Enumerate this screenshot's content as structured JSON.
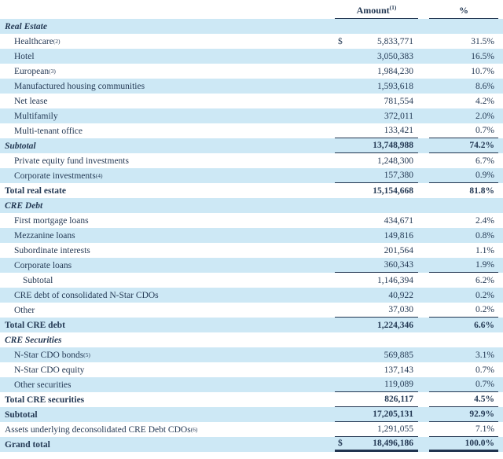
{
  "colors": {
    "row_shade": "#cde8f5",
    "text": "#253a55",
    "rule_line": "#203450"
  },
  "table": {
    "columns": {
      "amount_label": "Amount",
      "amount_sup": "(1)",
      "percent_label": "%"
    },
    "rows": [
      {
        "label": "Real Estate",
        "sup": "",
        "dollar": "",
        "amount": "",
        "pct": "",
        "indent": 0,
        "bold": true,
        "italic": true,
        "shade": true,
        "rule": "none"
      },
      {
        "label": "Healthcare",
        "sup": "(2)",
        "dollar": "$",
        "amount": "5,833,771",
        "pct": "31.5%",
        "indent": 1,
        "bold": false,
        "italic": false,
        "shade": false,
        "rule": "none"
      },
      {
        "label": "Hotel",
        "sup": "",
        "dollar": "",
        "amount": "3,050,383",
        "pct": "16.5%",
        "indent": 1,
        "bold": false,
        "italic": false,
        "shade": true,
        "rule": "none"
      },
      {
        "label": "European",
        "sup": "(3)",
        "dollar": "",
        "amount": "1,984,230",
        "pct": "10.7%",
        "indent": 1,
        "bold": false,
        "italic": false,
        "shade": false,
        "rule": "none"
      },
      {
        "label": "Manufactured housing communities",
        "sup": "",
        "dollar": "",
        "amount": "1,593,618",
        "pct": "8.6%",
        "indent": 1,
        "bold": false,
        "italic": false,
        "shade": true,
        "rule": "none"
      },
      {
        "label": "Net lease",
        "sup": "",
        "dollar": "",
        "amount": "781,554",
        "pct": "4.2%",
        "indent": 1,
        "bold": false,
        "italic": false,
        "shade": false,
        "rule": "none"
      },
      {
        "label": "Multifamily",
        "sup": "",
        "dollar": "",
        "amount": "372,011",
        "pct": "2.0%",
        "indent": 1,
        "bold": false,
        "italic": false,
        "shade": true,
        "rule": "none"
      },
      {
        "label": "Multi-tenant office",
        "sup": "",
        "dollar": "",
        "amount": "133,421",
        "pct": "0.7%",
        "indent": 1,
        "bold": false,
        "italic": false,
        "shade": false,
        "rule": "thin"
      },
      {
        "label": "Subtotal",
        "sup": "",
        "dollar": "",
        "amount": "13,748,988",
        "pct": "74.2%",
        "indent": 0,
        "bold": true,
        "italic": true,
        "shade": true,
        "rule": "thin"
      },
      {
        "label": "Private equity fund investments",
        "sup": "",
        "dollar": "",
        "amount": "1,248,300",
        "pct": "6.7%",
        "indent": 1,
        "bold": false,
        "italic": false,
        "shade": false,
        "rule": "none"
      },
      {
        "label": "Corporate investments",
        "sup": "(4)",
        "dollar": "",
        "amount": "157,380",
        "pct": "0.9%",
        "indent": 1,
        "bold": false,
        "italic": false,
        "shade": true,
        "rule": "thin"
      },
      {
        "label": "Total real estate",
        "sup": "",
        "dollar": "",
        "amount": "15,154,668",
        "pct": "81.8%",
        "indent": 0,
        "bold": true,
        "italic": false,
        "shade": false,
        "rule": "none"
      },
      {
        "label": "CRE Debt",
        "sup": "",
        "dollar": "",
        "amount": "",
        "pct": "",
        "indent": 0,
        "bold": true,
        "italic": true,
        "shade": true,
        "rule": "none"
      },
      {
        "label": "First mortgage loans",
        "sup": "",
        "dollar": "",
        "amount": "434,671",
        "pct": "2.4%",
        "indent": 1,
        "bold": false,
        "italic": false,
        "shade": false,
        "rule": "none"
      },
      {
        "label": "Mezzanine loans",
        "sup": "",
        "dollar": "",
        "amount": "149,816",
        "pct": "0.8%",
        "indent": 1,
        "bold": false,
        "italic": false,
        "shade": true,
        "rule": "none"
      },
      {
        "label": "Subordinate interests",
        "sup": "",
        "dollar": "",
        "amount": "201,564",
        "pct": "1.1%",
        "indent": 1,
        "bold": false,
        "italic": false,
        "shade": false,
        "rule": "none"
      },
      {
        "label": "Corporate loans",
        "sup": "",
        "dollar": "",
        "amount": "360,343",
        "pct": "1.9%",
        "indent": 1,
        "bold": false,
        "italic": false,
        "shade": true,
        "rule": "thin"
      },
      {
        "label": "Subtotal",
        "sup": "",
        "dollar": "",
        "amount": "1,146,394",
        "pct": "6.2%",
        "indent": 2,
        "bold": false,
        "italic": false,
        "shade": false,
        "rule": "none"
      },
      {
        "label": "CRE debt of consolidated N-Star CDOs",
        "sup": "",
        "dollar": "",
        "amount": "40,922",
        "pct": "0.2%",
        "indent": 1,
        "bold": false,
        "italic": false,
        "shade": true,
        "rule": "none"
      },
      {
        "label": "Other",
        "sup": "",
        "dollar": "",
        "amount": "37,030",
        "pct": "0.2%",
        "indent": 1,
        "bold": false,
        "italic": false,
        "shade": false,
        "rule": "thin"
      },
      {
        "label": "Total CRE debt",
        "sup": "",
        "dollar": "",
        "amount": "1,224,346",
        "pct": "6.6%",
        "indent": 0,
        "bold": true,
        "italic": false,
        "shade": true,
        "rule": "none"
      },
      {
        "label": "CRE Securities",
        "sup": "",
        "dollar": "",
        "amount": "",
        "pct": "",
        "indent": 0,
        "bold": true,
        "italic": true,
        "shade": false,
        "rule": "none"
      },
      {
        "label": "N-Star CDO bonds",
        "sup": "(5)",
        "dollar": "",
        "amount": "569,885",
        "pct": "3.1%",
        "indent": 1,
        "bold": false,
        "italic": false,
        "shade": true,
        "rule": "none"
      },
      {
        "label": "N-Star CDO equity",
        "sup": "",
        "dollar": "",
        "amount": "137,143",
        "pct": "0.7%",
        "indent": 1,
        "bold": false,
        "italic": false,
        "shade": false,
        "rule": "none"
      },
      {
        "label": "Other securities",
        "sup": "",
        "dollar": "",
        "amount": "119,089",
        "pct": "0.7%",
        "indent": 1,
        "bold": false,
        "italic": false,
        "shade": true,
        "rule": "thin"
      },
      {
        "label": "Total CRE securities",
        "sup": "",
        "dollar": "",
        "amount": "826,117",
        "pct": "4.5%",
        "indent": 0,
        "bold": true,
        "italic": false,
        "shade": false,
        "rule": "thin"
      },
      {
        "label": "Subtotal",
        "sup": "",
        "dollar": "",
        "amount": "17,205,131",
        "pct": "92.9%",
        "indent": 0,
        "bold": true,
        "italic": false,
        "shade": true,
        "rule": "thin"
      },
      {
        "label": "Assets underlying deconsolidated CRE Debt CDOs",
        "sup": "(6)",
        "dollar": "",
        "amount": "1,291,055",
        "pct": "7.1%",
        "indent": 0,
        "bold": false,
        "italic": false,
        "shade": false,
        "rule": "thin"
      },
      {
        "label": "Grand total",
        "sup": "",
        "dollar": "$",
        "amount": "18,496,186",
        "pct": "100.0%",
        "indent": 0,
        "bold": true,
        "italic": false,
        "shade": true,
        "rule": "thick"
      }
    ]
  }
}
